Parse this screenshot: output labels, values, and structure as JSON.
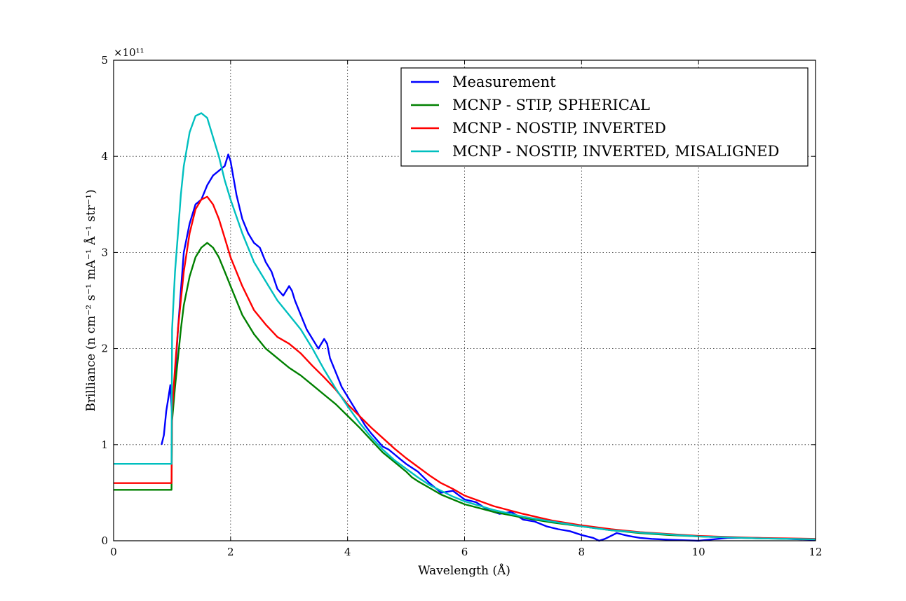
{
  "chart_data": {
    "type": "line",
    "title": "",
    "xlabel": "Wavelength (Å)",
    "ylabel": "Brilliance (n cm⁻² s⁻¹ mA⁻¹ Å⁻¹ str⁻¹)",
    "y_offset_label": "×10¹¹",
    "xlim": [
      0,
      12
    ],
    "ylim": [
      0,
      500000000000.0
    ],
    "x_ticks": [
      0,
      2,
      4,
      6,
      8,
      10,
      12
    ],
    "y_ticks": [
      0,
      1,
      2,
      3,
      4,
      5
    ],
    "y_tick_scale": 100000000000.0,
    "grid": true,
    "legend_position": "top-right",
    "series": [
      {
        "name": "Measurement",
        "color": "#0000ff",
        "x": [
          0.82,
          0.86,
          0.9,
          0.94,
          0.97,
          1.0,
          1.05,
          1.1,
          1.15,
          1.2,
          1.3,
          1.4,
          1.5,
          1.6,
          1.7,
          1.8,
          1.9,
          1.96,
          2.0,
          2.1,
          2.2,
          2.3,
          2.4,
          2.5,
          2.6,
          2.7,
          2.8,
          2.9,
          3.0,
          3.05,
          3.1,
          3.2,
          3.3,
          3.4,
          3.5,
          3.6,
          3.65,
          3.7,
          3.8,
          3.9,
          4.0,
          4.1,
          4.2,
          4.3,
          4.4,
          4.5,
          4.6,
          4.7,
          4.8,
          4.9,
          5.0,
          5.2,
          5.4,
          5.6,
          5.8,
          6.0,
          6.2,
          6.4,
          6.6,
          6.8,
          7.0,
          7.2,
          7.4,
          7.6,
          7.8,
          8.0,
          8.2,
          8.3,
          8.4,
          8.6,
          8.8,
          9.0,
          9.2,
          9.5,
          10.0,
          10.5,
          11.0,
          11.5,
          12.0
        ],
        "y": [
          100000000000.0,
          110000000000.0,
          135000000000.0,
          150000000000.0,
          162000000000.0,
          130000000000.0,
          170000000000.0,
          220000000000.0,
          260000000000.0,
          300000000000.0,
          330000000000.0,
          350000000000.0,
          355000000000.0,
          370000000000.0,
          380000000000.0,
          385000000000.0,
          390000000000.0,
          402000000000.0,
          395000000000.0,
          360000000000.0,
          335000000000.0,
          320000000000.0,
          310000000000.0,
          305000000000.0,
          290000000000.0,
          280000000000.0,
          262000000000.0,
          255000000000.0,
          265000000000.0,
          260000000000.0,
          250000000000.0,
          235000000000.0,
          220000000000.0,
          210000000000.0,
          200000000000.0,
          210000000000.0,
          205000000000.0,
          190000000000.0,
          175000000000.0,
          160000000000.0,
          150000000000.0,
          140000000000.0,
          130000000000.0,
          120000000000.0,
          112000000000.0,
          105000000000.0,
          98000000000.0,
          95000000000.0,
          90000000000.0,
          85000000000.0,
          80000000000.0,
          72000000000.0,
          60000000000.0,
          50000000000.0,
          52000000000.0,
          43000000000.0,
          40000000000.0,
          32000000000.0,
          28000000000.0,
          30000000000.0,
          22000000000.0,
          20000000000.0,
          15000000000.0,
          12000000000.0,
          10000000000.0,
          6000000000.0,
          3000000000.0,
          0.0,
          2000000000.0,
          8000000000.0,
          5000000000.0,
          3000000000.0,
          2000000000.0,
          1000000000.0,
          0.0,
          3000000000.0,
          3000000000.0,
          2000000000.0,
          1000000000.0
        ]
      },
      {
        "name": "MCNP - STIP, SPHERICAL",
        "color": "#008000",
        "x": [
          0.0,
          0.99,
          1.0,
          1.05,
          1.1,
          1.15,
          1.2,
          1.3,
          1.4,
          1.5,
          1.6,
          1.7,
          1.8,
          1.9,
          2.0,
          2.2,
          2.4,
          2.6,
          2.8,
          3.0,
          3.2,
          3.4,
          3.6,
          3.8,
          4.0,
          4.2,
          4.4,
          4.6,
          4.8,
          5.0,
          5.1,
          5.2,
          5.4,
          5.6,
          5.8,
          6.0,
          6.5,
          7.0,
          7.5,
          8.0,
          8.5,
          9.0,
          9.5,
          10.0,
          11.0,
          12.0
        ],
        "y": [
          53000000000.0,
          53000000000.0,
          125000000000.0,
          160000000000.0,
          190000000000.0,
          220000000000.0,
          245000000000.0,
          275000000000.0,
          295000000000.0,
          305000000000.0,
          310000000000.0,
          305000000000.0,
          295000000000.0,
          280000000000.0,
          265000000000.0,
          235000000000.0,
          215000000000.0,
          200000000000.0,
          190000000000.0,
          180000000000.0,
          172000000000.0,
          162000000000.0,
          152000000000.0,
          142000000000.0,
          130000000000.0,
          118000000000.0,
          105000000000.0,
          92000000000.0,
          82000000000.0,
          72000000000.0,
          66000000000.0,
          62000000000.0,
          55000000000.0,
          48000000000.0,
          43000000000.0,
          38000000000.0,
          30000000000.0,
          24000000000.0,
          19000000000.0,
          15000000000.0,
          11000000000.0,
          8000000000.0,
          6000000000.0,
          4500000000.0,
          2500000000.0,
          1500000000.0
        ]
      },
      {
        "name": "MCNP - NOSTIP, INVERTED",
        "color": "#ff0000",
        "x": [
          0.0,
          0.99,
          1.0,
          1.05,
          1.1,
          1.15,
          1.2,
          1.3,
          1.4,
          1.5,
          1.6,
          1.7,
          1.8,
          1.9,
          2.0,
          2.2,
          2.4,
          2.6,
          2.8,
          3.0,
          3.2,
          3.4,
          3.6,
          3.8,
          4.0,
          4.2,
          4.4,
          4.6,
          4.8,
          5.0,
          5.2,
          5.4,
          5.6,
          5.8,
          6.0,
          6.5,
          7.0,
          7.5,
          8.0,
          8.5,
          9.0,
          9.5,
          10.0,
          11.0,
          12.0
        ],
        "y": [
          60000000000.0,
          60000000000.0,
          135000000000.0,
          180000000000.0,
          220000000000.0,
          250000000000.0,
          280000000000.0,
          320000000000.0,
          345000000000.0,
          355000000000.0,
          358000000000.0,
          350000000000.0,
          335000000000.0,
          315000000000.0,
          295000000000.0,
          265000000000.0,
          240000000000.0,
          225000000000.0,
          212000000000.0,
          205000000000.0,
          195000000000.0,
          182000000000.0,
          170000000000.0,
          157000000000.0,
          142000000000.0,
          130000000000.0,
          118000000000.0,
          107000000000.0,
          96000000000.0,
          86000000000.0,
          77000000000.0,
          68000000000.0,
          60000000000.0,
          54000000000.0,
          47000000000.0,
          36000000000.0,
          28000000000.0,
          21000000000.0,
          16000000000.0,
          12000000000.0,
          9000000000.0,
          7000000000.0,
          5000000000.0,
          3000000000.0,
          2000000000.0
        ]
      },
      {
        "name": "MCNP - NOSTIP, INVERTED, MISALIGNED",
        "color": "#00bfbf",
        "x": [
          0.0,
          0.99,
          1.0,
          1.05,
          1.1,
          1.15,
          1.2,
          1.3,
          1.4,
          1.5,
          1.6,
          1.7,
          1.8,
          1.9,
          2.0,
          2.2,
          2.4,
          2.6,
          2.8,
          3.0,
          3.2,
          3.4,
          3.6,
          3.8,
          4.0,
          4.2,
          4.4,
          4.6,
          4.8,
          5.0,
          5.2,
          5.4,
          5.6,
          5.8,
          6.0,
          6.5,
          7.0,
          7.5,
          8.0,
          8.5,
          9.0,
          9.5,
          10.0,
          11.0,
          12.0
        ],
        "y": [
          80000000000.0,
          80000000000.0,
          220000000000.0,
          280000000000.0,
          320000000000.0,
          360000000000.0,
          390000000000.0,
          425000000000.0,
          442000000000.0,
          445000000000.0,
          440000000000.0,
          420000000000.0,
          400000000000.0,
          375000000000.0,
          355000000000.0,
          320000000000.0,
          290000000000.0,
          270000000000.0,
          250000000000.0,
          235000000000.0,
          220000000000.0,
          200000000000.0,
          178000000000.0,
          158000000000.0,
          140000000000.0,
          123000000000.0,
          108000000000.0,
          95000000000.0,
          84000000000.0,
          75000000000.0,
          66000000000.0,
          58000000000.0,
          52000000000.0,
          46000000000.0,
          41000000000.0,
          32000000000.0,
          25000000000.0,
          20000000000.0,
          15000000000.0,
          11000000000.0,
          8500000000.0,
          6500000000.0,
          4500000000.0,
          2500000000.0,
          1500000000.0
        ]
      }
    ]
  }
}
